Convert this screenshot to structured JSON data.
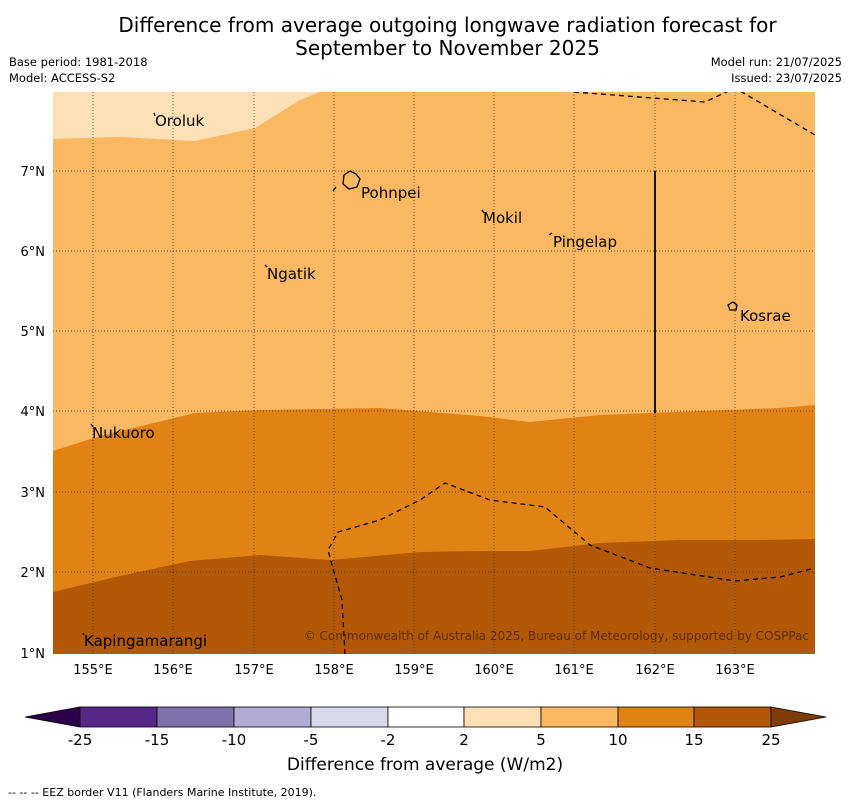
{
  "title": "Difference from average outgoing longwave radiation forecast for\nSeptember to November 2025",
  "meta": {
    "base_period": "Base period: 1981-2018",
    "model": "Model: ACCESS-S2",
    "model_run": "Model run: 21/07/2025",
    "issued": "Issued: 23/07/2025"
  },
  "map": {
    "lon_labels": [
      "155°E",
      "156°E",
      "157°E",
      "158°E",
      "159°E",
      "160°E",
      "161°E",
      "162°E",
      "163°E"
    ],
    "lat_labels": [
      "7°N",
      "6°N",
      "5°N",
      "4°N",
      "3°N",
      "2°N",
      "1°N"
    ],
    "places": [
      "Oroluk",
      "Pohnpei",
      "Mokil",
      "Pingelap",
      "Ngatik",
      "Kosrae",
      "Nukuoro",
      "Kapingamarangi"
    ],
    "copyright": "© Commonwealth of Australia 2025, Bureau of Meteorology, supported by COSPPac",
    "colors": {
      "c2_5": "#fde0b6",
      "c5_10": "#fbb862",
      "c10_15": "#e08214",
      "c15_25": "#b35806"
    }
  },
  "colorbar": {
    "labels": [
      "-25",
      "-15",
      "-10",
      "-5",
      "-2",
      "2",
      "5",
      "10",
      "15",
      "25"
    ],
    "colors": [
      "#2d004b",
      "#542788",
      "#8073ac",
      "#b2abd2",
      "#d8daeb",
      "#ffffff",
      "#fee0b6",
      "#fdb863",
      "#e08214",
      "#b35806",
      "#7f3b08"
    ],
    "xlabel": "Difference from average (W/m2)"
  },
  "footer": "--  --  -- EEZ border V11 (Flanders Marine Institute, 2019)."
}
